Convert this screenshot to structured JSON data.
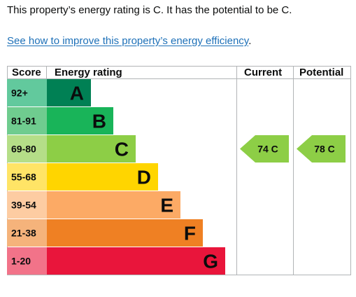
{
  "summary": {
    "text": "This property’s energy rating is C. It has the potential to be C."
  },
  "improve": {
    "link_text": "See how to improve this property’s energy efficiency",
    "suffix": "."
  },
  "table": {
    "headers": {
      "score": "Score",
      "rating": "Energy rating",
      "current": "Current",
      "potential": "Potential"
    },
    "bands": [
      {
        "score": "92+",
        "letter": "A",
        "color": "#008054",
        "label_bg": "#62c99d"
      },
      {
        "score": "81-91",
        "letter": "B",
        "color": "#19b459",
        "label_bg": "#6fcc8f"
      },
      {
        "score": "69-80",
        "letter": "C",
        "color": "#8dce46",
        "label_bg": "#b5de88"
      },
      {
        "score": "55-68",
        "letter": "D",
        "color": "#ffd500",
        "label_bg": "#ffe466"
      },
      {
        "score": "39-54",
        "letter": "E",
        "color": "#fcaa65",
        "label_bg": "#fdcca2"
      },
      {
        "score": "21-38",
        "letter": "F",
        "color": "#ef8023",
        "label_bg": "#f5b37b"
      },
      {
        "score": "1-20",
        "letter": "G",
        "color": "#e9153b",
        "label_bg": "#f27389"
      }
    ],
    "current": {
      "value": "74",
      "band": "C",
      "label": "74  C",
      "color": "#8dce46"
    },
    "potential": {
      "value": "78",
      "band": "C",
      "label": "78  C",
      "color": "#8dce46"
    }
  }
}
